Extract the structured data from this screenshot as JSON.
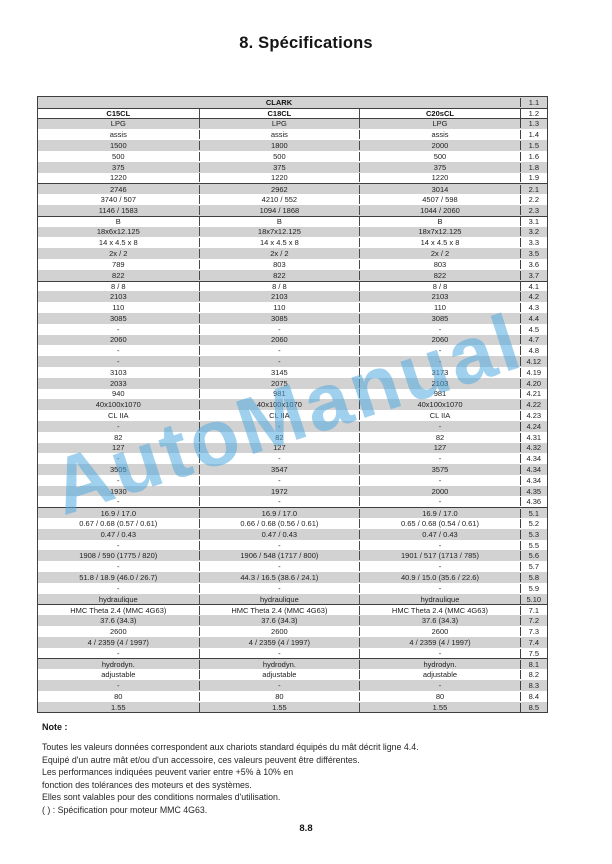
{
  "page": {
    "title": "8. Spécifications",
    "footer_page_number": "8.8"
  },
  "watermark": {
    "text": "AutoManual",
    "color": "rgba(80,170,222,0.55)"
  },
  "table": {
    "shade_color": "#d2d2d2",
    "border_color": "#3f3f3f",
    "rows": [
      {
        "code": "1.1",
        "cells": [
          "CLARK"
        ],
        "span": true,
        "bold": true
      },
      {
        "code": "1.2",
        "cells": [
          "C15CL",
          "C18CL",
          "C20sCL"
        ],
        "bold": true,
        "hdr": true
      },
      {
        "code": "1.3",
        "cells": [
          "LPG",
          "LPG",
          "LPG"
        ]
      },
      {
        "code": "1.4",
        "cells": [
          "assis",
          "assis",
          "assis"
        ]
      },
      {
        "code": "1.5",
        "cells": [
          "1500",
          "1800",
          "2000"
        ]
      },
      {
        "code": "1.6",
        "cells": [
          "500",
          "500",
          "500"
        ]
      },
      {
        "code": "1.8",
        "cells": [
          "375",
          "375",
          "375"
        ]
      },
      {
        "code": "1.9",
        "cells": [
          "1220",
          "1220",
          "1220"
        ]
      },
      {
        "code": "2.1",
        "cells": [
          "2746",
          "2962",
          "3014"
        ],
        "section": true
      },
      {
        "code": "2.2",
        "cells": [
          "3740 / 507",
          "4210 / 552",
          "4507 / 598"
        ]
      },
      {
        "code": "2.3",
        "cells": [
          "1146 / 1583",
          "1094 / 1868",
          "1044 / 2060"
        ]
      },
      {
        "code": "3.1",
        "cells": [
          "B",
          "B",
          "B"
        ],
        "section": true
      },
      {
        "code": "3.2",
        "cells": [
          "18x6x12.125",
          "18x7x12.125",
          "18x7x12.125"
        ]
      },
      {
        "code": "3.3",
        "cells": [
          "14 x 4.5 x 8",
          "14 x 4.5 x 8",
          "14 x 4.5 x 8"
        ]
      },
      {
        "code": "3.5",
        "cells": [
          "2x / 2",
          "2x / 2",
          "2x / 2"
        ]
      },
      {
        "code": "3.6",
        "cells": [
          "789",
          "803",
          "803"
        ]
      },
      {
        "code": "3.7",
        "cells": [
          "822",
          "822",
          "822"
        ]
      },
      {
        "code": "4.1",
        "cells": [
          "8 / 8",
          "8 / 8",
          "8 / 8"
        ],
        "section": true
      },
      {
        "code": "4.2",
        "cells": [
          "2103",
          "2103",
          "2103"
        ]
      },
      {
        "code": "4.3",
        "cells": [
          "110",
          "110",
          "110"
        ]
      },
      {
        "code": "4.4",
        "cells": [
          "3085",
          "3085",
          "3085"
        ]
      },
      {
        "code": "4.5",
        "cells": [
          "-",
          "-",
          "-"
        ]
      },
      {
        "code": "4.7",
        "cells": [
          "2060",
          "2060",
          "2060"
        ]
      },
      {
        "code": "4.8",
        "cells": [
          "-",
          "-",
          "-"
        ]
      },
      {
        "code": "4.12",
        "cells": [
          "-",
          "-",
          "-"
        ]
      },
      {
        "code": "4.19",
        "cells": [
          "3103",
          "3145",
          "3173"
        ]
      },
      {
        "code": "4.20",
        "cells": [
          "2033",
          "2075",
          "2103"
        ]
      },
      {
        "code": "4.21",
        "cells": [
          "940",
          "981",
          "981"
        ]
      },
      {
        "code": "4.22",
        "cells": [
          "40x100x1070",
          "40x100x1070",
          "40x100x1070"
        ]
      },
      {
        "code": "4.23",
        "cells": [
          "CL IIA",
          "CL IIA",
          "CL IIA"
        ]
      },
      {
        "code": "4.24",
        "cells": [
          "-",
          "-",
          "-"
        ]
      },
      {
        "code": "4.31",
        "cells": [
          "82",
          "82",
          "82"
        ]
      },
      {
        "code": "4.32",
        "cells": [
          "127",
          "127",
          "127"
        ]
      },
      {
        "code": "4.34",
        "cells": [
          "-",
          "-",
          "-"
        ]
      },
      {
        "code": "4.34",
        "cells": [
          "3505",
          "3547",
          "3575"
        ]
      },
      {
        "code": "4.34",
        "cells": [
          "-",
          "-",
          "-"
        ]
      },
      {
        "code": "4.35",
        "cells": [
          "1930",
          "1972",
          "2000"
        ]
      },
      {
        "code": "4.36",
        "cells": [
          "-",
          "-",
          "-"
        ]
      },
      {
        "code": "5.1",
        "cells": [
          "16.9 / 17.0",
          "16.9 / 17.0",
          "16.9 / 17.0"
        ],
        "section": true
      },
      {
        "code": "5.2",
        "cells": [
          "0.67 / 0.68 (0.57 / 0.61)",
          "0.66 / 0.68 (0.56 / 0.61)",
          "0.65 / 0.68 (0.54 / 0.61)"
        ]
      },
      {
        "code": "5.3",
        "cells": [
          "0.47 / 0.43",
          "0.47 / 0.43",
          "0.47 / 0.43"
        ]
      },
      {
        "code": "5.5",
        "cells": [
          "-",
          "-",
          "-"
        ]
      },
      {
        "code": "5.6",
        "cells": [
          "1908 / 590 (1775 / 820)",
          "1906 / 548 (1717 / 800)",
          "1901 / 517 (1713 / 785)"
        ]
      },
      {
        "code": "5.7",
        "cells": [
          "-",
          "-",
          "-"
        ]
      },
      {
        "code": "5.8",
        "cells": [
          "51.8 / 18.9 (46.0 / 26.7)",
          "44.3 / 16.5 (38.6 / 24.1)",
          "40.9 / 15.0 (35.6 / 22.6)"
        ]
      },
      {
        "code": "5.9",
        "cells": [
          "-",
          "-",
          "-"
        ]
      },
      {
        "code": "5.10",
        "cells": [
          "hydraulique",
          "hydraulique",
          "hydraulique"
        ]
      },
      {
        "code": "7.1",
        "cells": [
          "HMC Theta 2.4 (MMC 4G63)",
          "HMC Theta 2.4 (MMC 4G63)",
          "HMC Theta 2.4 (MMC 4G63)"
        ],
        "section": true
      },
      {
        "code": "7.2",
        "cells": [
          "37.6 (34.3)",
          "37.6 (34.3)",
          "37.6 (34.3)"
        ]
      },
      {
        "code": "7.3",
        "cells": [
          "2600",
          "2600",
          "2600"
        ]
      },
      {
        "code": "7.4",
        "cells": [
          "4 / 2359 (4 / 1997)",
          "4 / 2359 (4 / 1997)",
          "4 / 2359 (4 / 1997)"
        ]
      },
      {
        "code": "7.5",
        "cells": [
          "-",
          "-",
          "-"
        ]
      },
      {
        "code": "8.1",
        "cells": [
          "hydrodyn.",
          "hydrodyn.",
          "hydrodyn."
        ],
        "section": true
      },
      {
        "code": "8.2",
        "cells": [
          "adjustable",
          "adjustable",
          "adjustable"
        ]
      },
      {
        "code": "8.3",
        "cells": [
          "-",
          "-",
          "-"
        ]
      },
      {
        "code": "8.4",
        "cells": [
          "80",
          "80",
          "80"
        ]
      },
      {
        "code": "8.5",
        "cells": [
          "1.55",
          "1.55",
          "1.55"
        ]
      }
    ]
  },
  "note": {
    "heading": "Note :",
    "lines": [
      "Toutes les valeurs données correspondent aux chariots standard équipés du mât décrit ligne 4.4.",
      "Equipé d'un autre mât et/ou d'un accessoire, ces valeurs peuvent être différentes.",
      "Les performances indiquées peuvent varier entre +5% à 10% en",
      "fonction des tolérances des moteurs et des systèmes.",
      "Elles sont valables pour des conditions normales d'utilisation.",
      "(    )  :  Spécification pour moteur MMC 4G63."
    ]
  }
}
